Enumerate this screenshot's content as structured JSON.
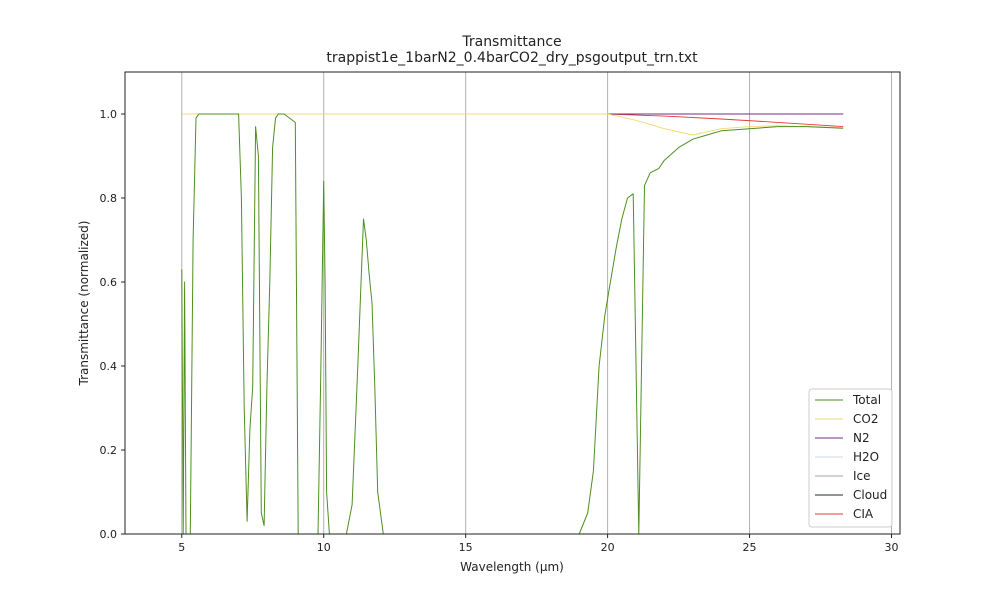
{
  "chart_data": {
    "type": "line",
    "title": "Transmittance",
    "subtitle": "trappist1e_1barN2_0.4barCO2_dry_psgoutput_trn.txt",
    "xlabel": "Wavelength (μm)",
    "ylabel": "Transmittance (normalized)",
    "xlim": [
      3,
      30.3
    ],
    "ylim": [
      0,
      1.1
    ],
    "xticks": [
      5,
      10,
      15,
      20,
      25,
      30
    ],
    "yticks": [
      0.0,
      0.2,
      0.4,
      0.6,
      0.8,
      1.0
    ],
    "xtick_labels": [
      "5",
      "10",
      "15",
      "20",
      "25",
      "30"
    ],
    "ytick_labels": [
      "0.0",
      "0.2",
      "0.4",
      "0.6",
      "0.8",
      "1.0"
    ],
    "grid": "vertical",
    "legend": "bottom-right",
    "series": [
      {
        "name": "Total",
        "color": "#4e8f1f",
        "x": [
          5.0,
          5.05,
          5.1,
          5.15,
          5.2,
          5.3,
          5.4,
          5.5,
          5.6,
          6.0,
          6.5,
          7.0,
          7.1,
          7.2,
          7.3,
          7.4,
          7.5,
          7.6,
          7.7,
          7.8,
          7.9,
          8.0,
          8.1,
          8.2,
          8.3,
          8.4,
          8.6,
          9.0,
          9.1,
          9.2,
          9.5,
          9.8,
          9.9,
          10.0,
          10.05,
          10.1,
          10.2,
          10.3,
          10.8,
          11.0,
          11.2,
          11.4,
          11.5,
          11.6,
          11.7,
          11.8,
          11.9,
          12.0,
          12.1,
          12.3,
          12.5,
          15.0,
          18.5,
          19.0,
          19.3,
          19.5,
          19.7,
          19.9,
          20.1,
          20.3,
          20.5,
          20.7,
          20.9,
          21.1,
          21.3,
          21.5,
          21.8,
          22.0,
          22.5,
          23.0,
          23.5,
          24.0,
          25.0,
          26.0,
          27.0,
          28.3
        ],
        "y": [
          0.63,
          0.0,
          0.6,
          0.0,
          0.0,
          0.0,
          0.7,
          0.99,
          1.0,
          1.0,
          1.0,
          1.0,
          0.8,
          0.3,
          0.03,
          0.25,
          0.35,
          0.97,
          0.9,
          0.05,
          0.02,
          0.35,
          0.6,
          0.92,
          0.99,
          1.0,
          1.0,
          0.98,
          0.0,
          0.0,
          0.0,
          0.0,
          0.4,
          0.84,
          0.6,
          0.1,
          0.0,
          0.0,
          0.0,
          0.07,
          0.4,
          0.75,
          0.7,
          0.62,
          0.55,
          0.35,
          0.1,
          0.05,
          0.0,
          0.0,
          0.0,
          0.0,
          0.0,
          0.0,
          0.05,
          0.15,
          0.4,
          0.52,
          0.6,
          0.68,
          0.75,
          0.8,
          0.81,
          0.0,
          0.83,
          0.86,
          0.87,
          0.89,
          0.92,
          0.94,
          0.95,
          0.96,
          0.965,
          0.97,
          0.97,
          0.966
        ]
      },
      {
        "name": "CO2",
        "color": "#f2d877",
        "x": [
          5.0,
          19.0,
          20.0,
          21.0,
          22.0,
          23.0,
          24.0,
          25.0,
          26.0,
          28.3
        ],
        "y": [
          1.0,
          1.0,
          1.0,
          0.985,
          0.965,
          0.95,
          0.965,
          0.97,
          0.972,
          0.968
        ]
      },
      {
        "name": "N2",
        "color": "#7a2e85",
        "x": [
          5.0,
          28.3
        ],
        "y": [
          1.0,
          1.0
        ]
      },
      {
        "name": "H2O",
        "color": "#cdd7e2",
        "x": [
          5.0,
          28.3
        ],
        "y": [
          1.0,
          1.0
        ]
      },
      {
        "name": "Ice",
        "color": "#a4a4a4",
        "x": [
          5.0,
          28.3
        ],
        "y": [
          1.0,
          1.0
        ]
      },
      {
        "name": "Cloud",
        "color": "#1e2a32",
        "x": [
          5.0,
          28.3
        ],
        "y": [
          1.0,
          1.0
        ]
      },
      {
        "name": "CIA",
        "color": "#e43a3a",
        "x": [
          5.0,
          18.0,
          20.0,
          22.0,
          24.0,
          26.0,
          28.3
        ],
        "y": [
          1.0,
          1.0,
          1.0,
          0.995,
          0.988,
          0.98,
          0.97
        ]
      }
    ]
  }
}
